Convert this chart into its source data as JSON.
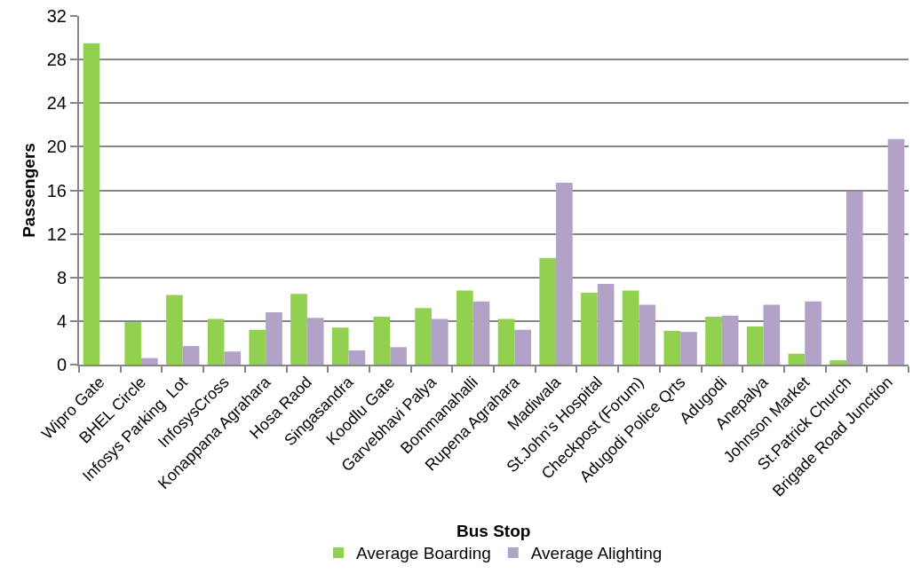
{
  "chart_data": {
    "type": "bar",
    "xlabel": "Bus Stop",
    "ylabel": "Passengers",
    "categories": [
      "Wipro Gate",
      "BHEL Circle",
      "Infosys Parking  Lot",
      "InfosysCross",
      "Konappana Agrahara",
      "Hosa Raod",
      "Singasandra",
      "Koodlu Gate",
      "Garvebhavi Palya",
      "Bommanahalli",
      "Rupena Agrahara",
      "Madiwala",
      "St.John's Hospital",
      "Checkpost (Forum)",
      "Adugodi Police Qrts",
      "Adugodi",
      "Anepalya",
      "Johnson Market",
      "St.Patrick Church",
      "Brigade Road Junction"
    ],
    "series": [
      {
        "name": "Average Boarding",
        "color": "#92d050",
        "values": [
          29.5,
          3.9,
          6.4,
          4.2,
          3.2,
          6.5,
          3.4,
          4.4,
          5.2,
          6.8,
          4.2,
          9.8,
          6.6,
          6.8,
          3.1,
          4.4,
          3.5,
          1.0,
          0.4,
          0
        ]
      },
      {
        "name": "Average Alighting",
        "color": "#b3a2c7",
        "values": [
          0,
          0.6,
          1.7,
          1.2,
          4.8,
          4.3,
          1.3,
          1.6,
          4.2,
          5.8,
          3.2,
          16.7,
          7.4,
          5.5,
          3.0,
          4.5,
          5.5,
          5.8,
          15.9,
          20.7
        ]
      }
    ],
    "ylim": [
      0,
      32
    ],
    "yticks": [
      0,
      4,
      8,
      12,
      16,
      20,
      24,
      28,
      32
    ],
    "grid": "y",
    "legend": "bottom"
  }
}
